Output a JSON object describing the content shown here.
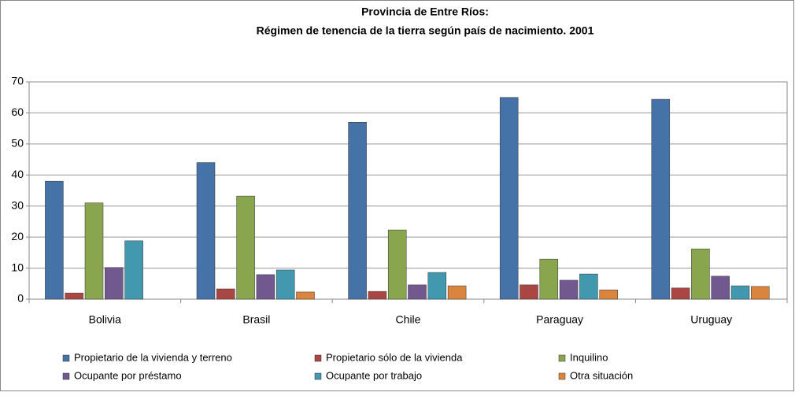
{
  "chart_data": {
    "type": "bar",
    "title": "Provincia de Entre Ríos:",
    "subtitle": "Régimen de tenencia de la tierra según país de nacimiento. 2001",
    "categories": [
      "Bolivia",
      "Brasil",
      "Chile",
      "Paraguay",
      "Uruguay"
    ],
    "series": [
      {
        "name": "Propietario de la vivienda y terreno",
        "color": "#4572a7",
        "values": [
          38,
          44,
          57,
          65,
          64.4
        ]
      },
      {
        "name": "Propietario sólo de la vivienda",
        "color": "#aa4643",
        "values": [
          2,
          3.3,
          2.5,
          4.6,
          3.6
        ]
      },
      {
        "name": "Inquilino",
        "color": "#89a54e",
        "values": [
          31,
          33.2,
          22.3,
          12.9,
          16.2
        ]
      },
      {
        "name": "Ocupante por préstamo",
        "color": "#71588f",
        "values": [
          10.2,
          7.9,
          4.6,
          6.1,
          7.4
        ]
      },
      {
        "name": "Ocupante por trabajo",
        "color": "#4198af",
        "values": [
          18.8,
          9.4,
          8.6,
          8.1,
          4.3
        ]
      },
      {
        "name": "Otra situación",
        "color": "#db843d",
        "values": [
          0,
          2.3,
          4.3,
          3.0,
          4.1
        ]
      }
    ],
    "ylim": [
      0,
      70
    ],
    "yticks": [
      0,
      10,
      20,
      30,
      40,
      50,
      60,
      70
    ],
    "grid": true
  }
}
